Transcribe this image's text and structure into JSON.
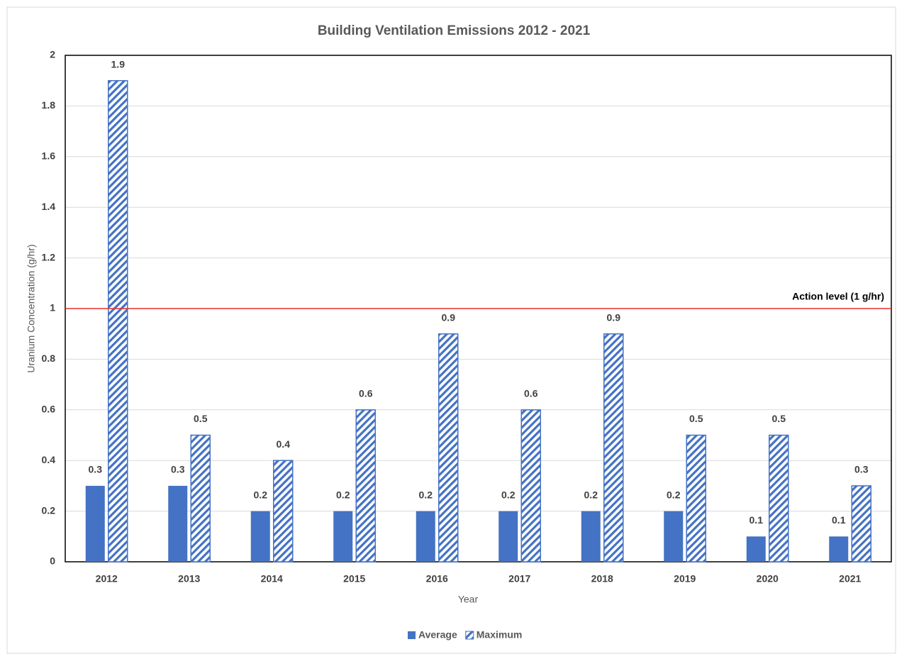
{
  "chart_data": {
    "type": "bar",
    "title": "Building Ventilation Emissions 2012 - 2021",
    "x_label": "Year",
    "y_label": "Uranium Concentration (g/hr)",
    "categories": [
      "2012",
      "2013",
      "2014",
      "2015",
      "2016",
      "2017",
      "2018",
      "2019",
      "2020",
      "2021"
    ],
    "series": [
      {
        "name": "Average",
        "color": "#4472c4",
        "fill": "solid",
        "values": [
          0.3,
          0.3,
          0.2,
          0.2,
          0.2,
          0.2,
          0.2,
          0.2,
          0.1,
          0.1
        ]
      },
      {
        "name": "Maximum",
        "color": "#4472c4",
        "fill": "hatch",
        "values": [
          1.9,
          0.5,
          0.4,
          0.6,
          0.9,
          0.6,
          0.9,
          0.5,
          0.5,
          0.3
        ]
      }
    ],
    "ylim": [
      0,
      2
    ],
    "yticks": [
      0,
      0.2,
      0.4,
      0.6,
      0.8,
      1,
      1.2,
      1.4,
      1.6,
      1.8,
      2
    ],
    "grid": true,
    "legend": "bottom",
    "annotations": [
      {
        "text": "Action level (1 g/hr)",
        "value": 1,
        "color": "#e8302a"
      }
    ]
  }
}
